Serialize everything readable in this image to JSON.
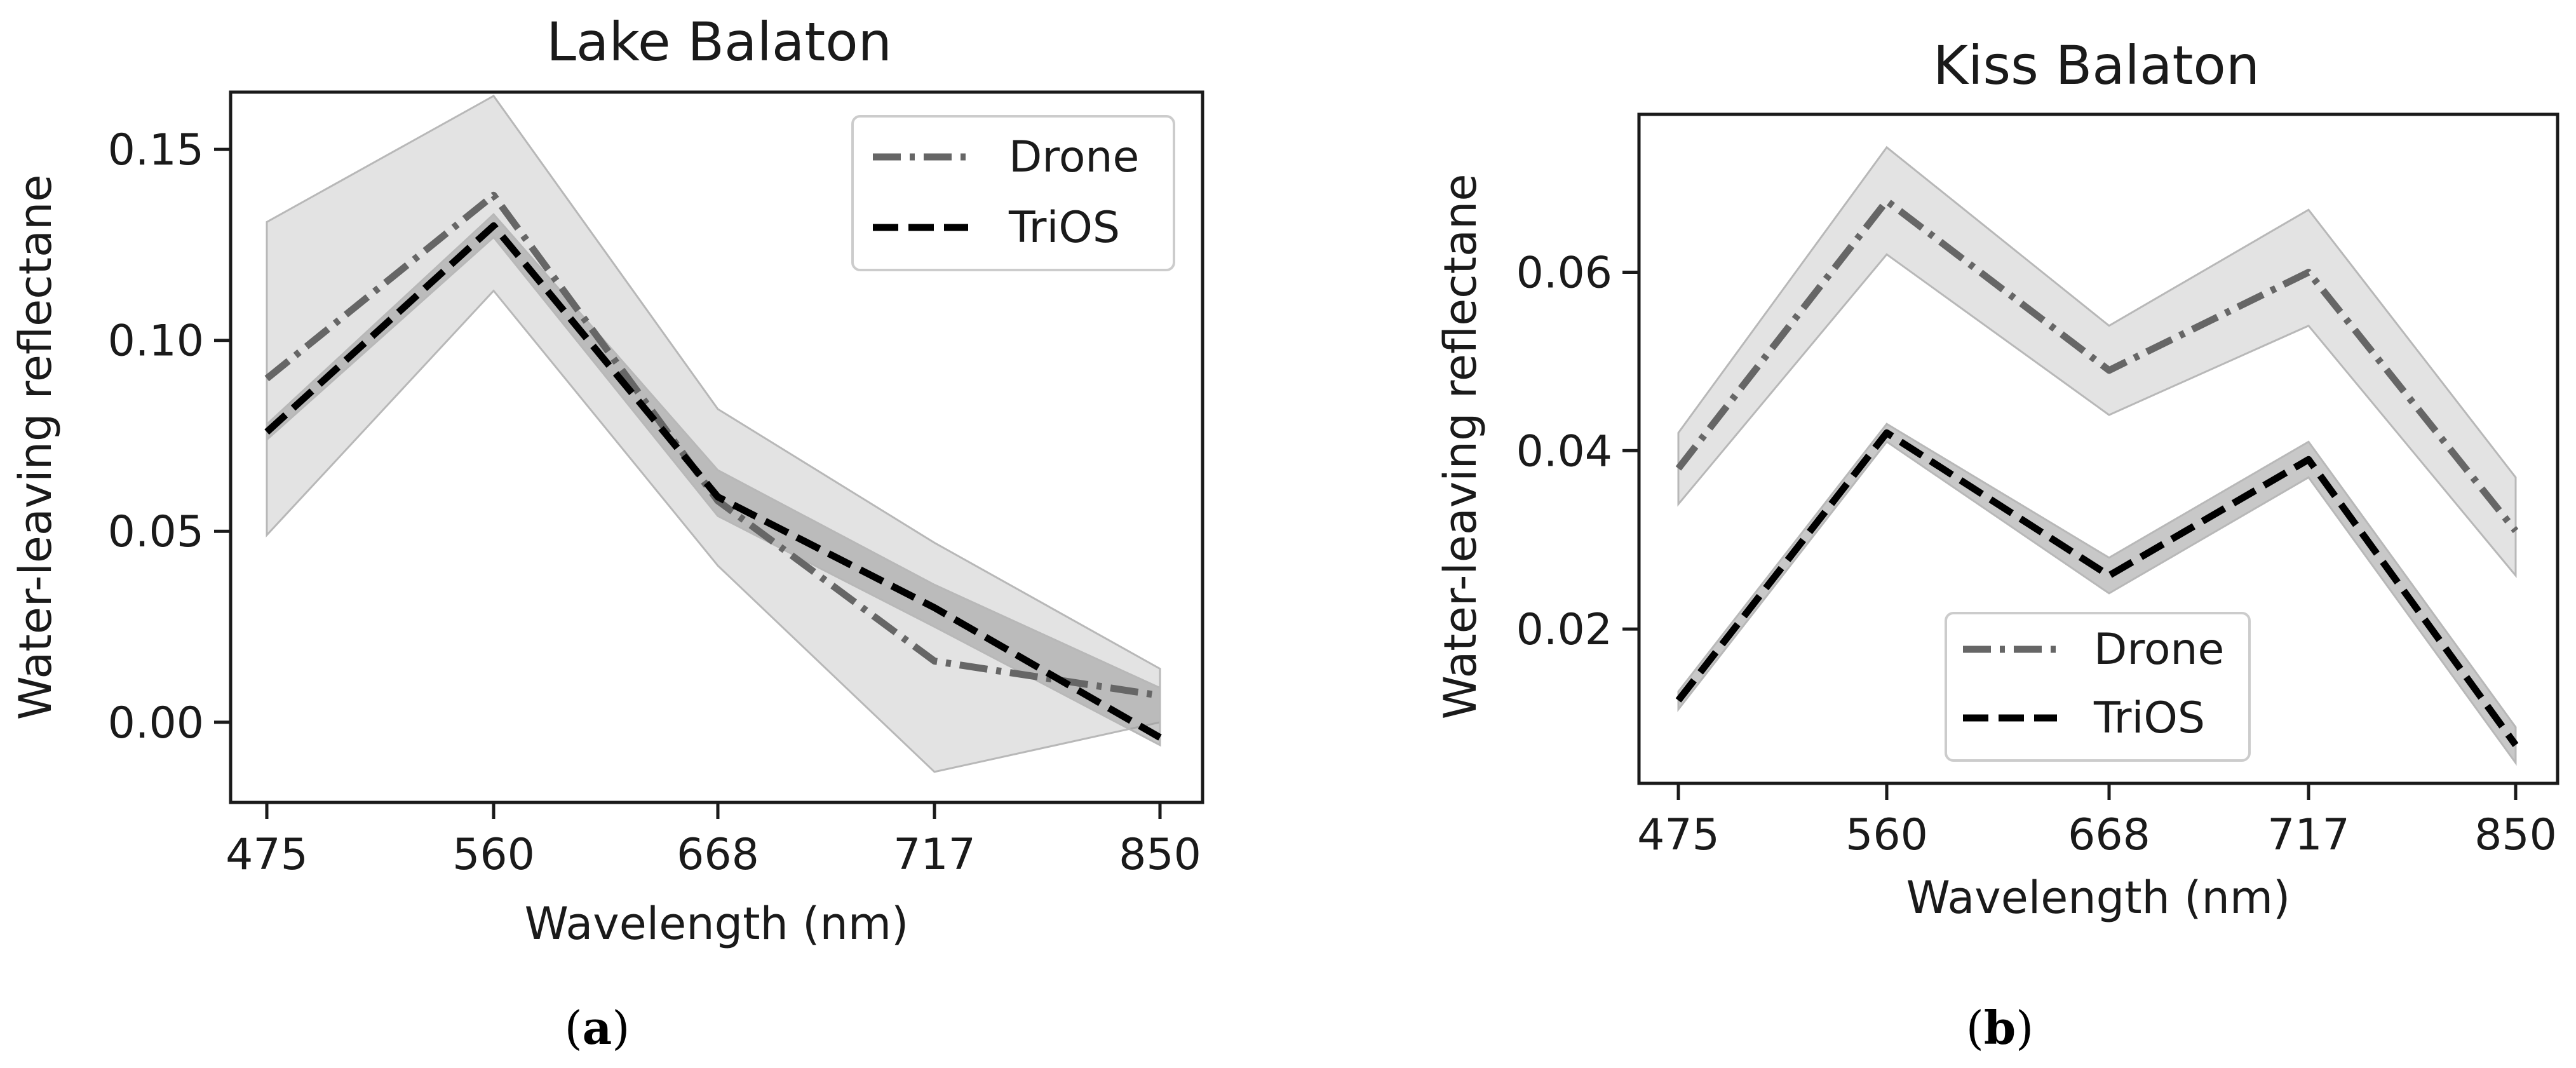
{
  "chart_data": [
    {
      "type": "line",
      "title": "Lake Balaton",
      "xlabel": "Wavelength (nm)",
      "ylabel": "Water-leaving reflectane",
      "categories": [
        "475",
        "560",
        "668",
        "717",
        "850"
      ],
      "yticks": [
        "0.00",
        "0.05",
        "0.10",
        "0.15"
      ],
      "ytick_values": [
        0.0,
        0.05,
        0.1,
        0.15
      ],
      "ylim": [
        -0.021,
        0.165
      ],
      "legend_position": "top-right",
      "series": [
        {
          "name": "Drone",
          "style": "dashdot",
          "color": "#666666",
          "values": [
            0.09,
            0.138,
            0.058,
            0.016,
            0.007
          ],
          "band_lower": [
            0.049,
            0.113,
            0.041,
            -0.013,
            0.0
          ],
          "band_upper": [
            0.131,
            0.164,
            0.082,
            0.047,
            0.014
          ]
        },
        {
          "name": "TriOS",
          "style": "dashed",
          "color": "#000000",
          "values": [
            0.076,
            0.13,
            0.059,
            0.03,
            -0.004
          ],
          "band_lower": [
            0.074,
            0.127,
            0.054,
            0.025,
            -0.006
          ],
          "band_upper": [
            0.078,
            0.133,
            0.066,
            0.036,
            0.009
          ]
        }
      ],
      "caption": "(a)"
    },
    {
      "type": "line",
      "title": "Kiss Balaton",
      "xlabel": "Wavelength (nm)",
      "ylabel": "Water-leaving reflectane",
      "categories": [
        "475",
        "560",
        "668",
        "717",
        "850"
      ],
      "yticks": [
        "0.02",
        "0.04",
        "0.06"
      ],
      "ytick_values": [
        0.02,
        0.04,
        0.06
      ],
      "ylim": [
        0.0027,
        0.0777
      ],
      "legend_position": "lower-center",
      "series": [
        {
          "name": "Drone",
          "style": "dashdot",
          "color": "#666666",
          "values": [
            0.038,
            0.068,
            0.049,
            0.06,
            0.031
          ],
          "band_lower": [
            0.034,
            0.062,
            0.044,
            0.054,
            0.026
          ],
          "band_upper": [
            0.042,
            0.074,
            0.054,
            0.067,
            0.037
          ]
        },
        {
          "name": "TriOS",
          "style": "dashed",
          "color": "#000000",
          "values": [
            0.012,
            0.042,
            0.026,
            0.039,
            0.007
          ],
          "band_lower": [
            0.011,
            0.041,
            0.024,
            0.037,
            0.005
          ],
          "band_upper": [
            0.013,
            0.043,
            0.028,
            0.041,
            0.009
          ]
        }
      ],
      "caption": "(b)"
    }
  ],
  "colors": {
    "band_fill": "#d0d0d0",
    "band_edge": "#b8b8b8",
    "axis": "#1a1a1a"
  }
}
